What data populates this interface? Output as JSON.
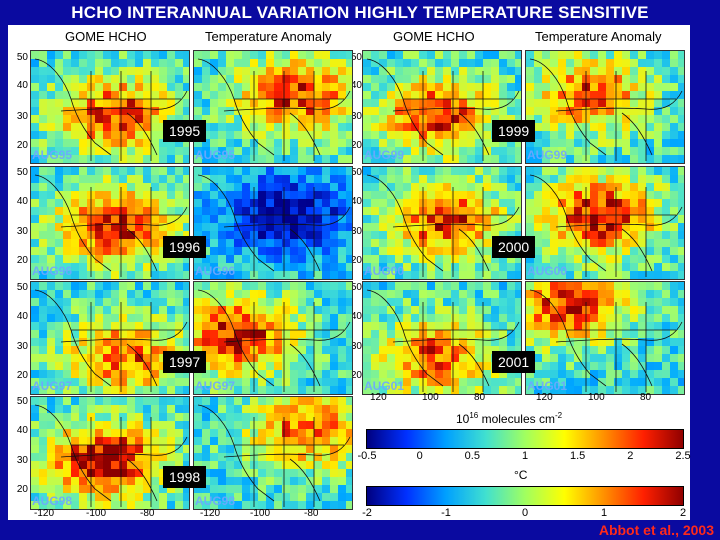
{
  "title": "HCHO INTERANNUAL VARIATION HIGHLY TEMPERATURE SENSITIVE",
  "column_headers": [
    "GOME HCHO",
    "Temperature Anomaly",
    "GOME HCHO",
    "Temperature Anomaly"
  ],
  "latitude_ticks": [
    "50",
    "40",
    "30",
    "20"
  ],
  "longitude_ticks_left": [
    "-120",
    "-100",
    "-80",
    "-120",
    "-100",
    "-80"
  ],
  "longitude_ticks_right": [
    "120",
    "100",
    "80",
    "120",
    "100",
    "80"
  ],
  "panels": [
    {
      "year": "1995",
      "month_left": "AUG95",
      "month_right": "AUG95"
    },
    {
      "year": "1996",
      "month_left": "AUG96",
      "month_right": "AUG96"
    },
    {
      "year": "1997",
      "month_left": "AUG97",
      "month_right": "AUG97"
    },
    {
      "year": "1998",
      "month_left": "AUG98",
      "month_right": "AUG98"
    },
    {
      "year": "1999",
      "month_left": "AUG99",
      "month_right": "AUG99"
    },
    {
      "year": "2000",
      "month_left": "AUG00",
      "month_right": "AUG00"
    },
    {
      "year": "2001",
      "month_left": "AUG01",
      "month_right": "AUG01"
    }
  ],
  "colorbar_hcho": {
    "ticks": [
      "-0.5",
      "0",
      "0.5",
      "1",
      "1.5",
      "2",
      "2.5"
    ],
    "label_prefix": "10",
    "label_exp": "16",
    "label_suffix": " molecules cm",
    "label_exp2": "-2"
  },
  "colorbar_temp": {
    "ticks": [
      "-2",
      "-1",
      "0",
      "1",
      "2"
    ],
    "label": "°C"
  },
  "credit": "Abbot et al., 2003"
}
